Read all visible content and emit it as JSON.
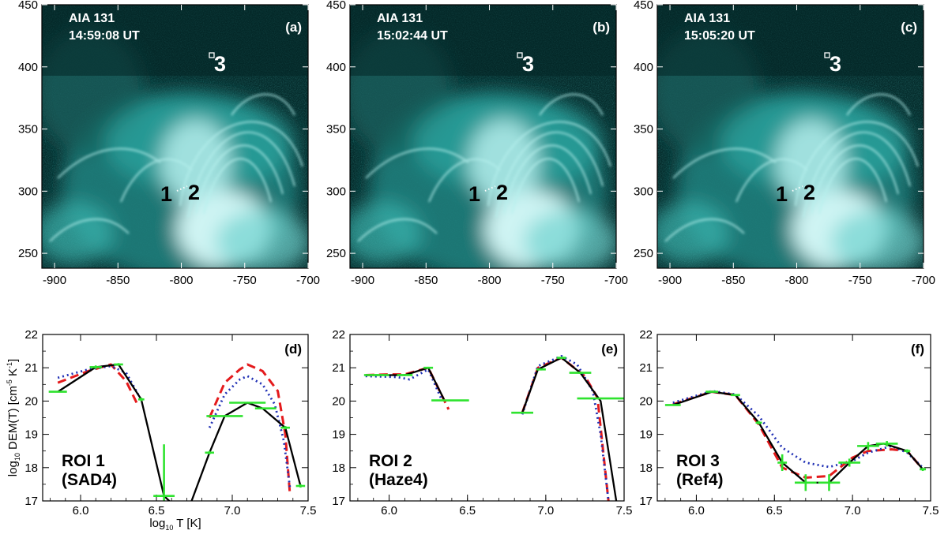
{
  "colors": {
    "image_base": "#052c2c",
    "image_glow": "#dffcfb",
    "image_mid": "#2ea7a3",
    "solid": "#000000",
    "dashed": "#e41a1c",
    "dotted": "#1f2fb4",
    "errbars": "#2ee32e"
  },
  "image_panels": {
    "x_ticks": [
      "-900",
      "-850",
      "-800",
      "-750",
      "-700"
    ],
    "y_ticks": [
      "450",
      "400",
      "350",
      "300",
      "250"
    ],
    "x_range": [
      -910,
      -700
    ],
    "y_range": [
      238,
      450
    ],
    "items": [
      {
        "letter": "(a)",
        "instrument": "AIA 131",
        "time": "14:59:08 UT"
      },
      {
        "letter": "(b)",
        "instrument": "AIA 131",
        "time": "15:02:44 UT"
      },
      {
        "letter": "(c)",
        "instrument": "AIA 131",
        "time": "15:05:20 UT"
      }
    ],
    "markers": {
      "roi1": "1",
      "roi2": "2",
      "roi3": "3"
    }
  },
  "chart_data": [
    {
      "type": "line",
      "panel": "(d)",
      "label_line1": "ROI 1",
      "label_line2": "(SAD4)",
      "ylabel_parts": [
        "log",
        "10",
        " DEM(T) [cm",
        "-5",
        " K",
        "-1",
        "]"
      ],
      "xlabel_parts": [
        "log",
        "10",
        " T [K]"
      ],
      "xlim": [
        5.75,
        7.5
      ],
      "ylim": [
        17,
        22
      ],
      "x_ticks": [
        6.0,
        6.5,
        7.0,
        7.5
      ],
      "y_ticks": [
        17,
        18,
        19,
        20,
        21,
        22
      ],
      "series": [
        {
          "style": "solid",
          "segments": [
            [
              [
                5.85,
                20.28
              ],
              [
                6.1,
                21.02
              ],
              [
                6.25,
                21.1
              ],
              [
                6.4,
                20.05
              ],
              [
                6.55,
                17.15
              ],
              [
                6.62,
                16.85
              ]
            ],
            [
              [
                6.72,
                16.85
              ],
              [
                6.85,
                18.45
              ],
              [
                6.95,
                19.55
              ],
              [
                7.1,
                19.95
              ],
              [
                7.2,
                19.78
              ],
              [
                7.35,
                19.2
              ],
              [
                7.45,
                17.45
              ]
            ]
          ]
        },
        {
          "style": "dashed",
          "segments": [
            [
              [
                5.85,
                20.55
              ],
              [
                6.05,
                20.9
              ],
              [
                6.2,
                21.1
              ],
              [
                6.3,
                20.6
              ],
              [
                6.38,
                19.85
              ]
            ],
            [
              [
                6.85,
                19.5
              ],
              [
                6.95,
                20.55
              ],
              [
                7.05,
                20.95
              ],
              [
                7.1,
                21.1
              ],
              [
                7.2,
                20.9
              ],
              [
                7.3,
                20.3
              ],
              [
                7.35,
                19.0
              ],
              [
                7.38,
                17.2
              ]
            ]
          ]
        },
        {
          "style": "dotted",
          "segments": [
            [
              [
                5.85,
                20.7
              ],
              [
                6.05,
                20.95
              ],
              [
                6.2,
                21.05
              ],
              [
                6.3,
                20.85
              ],
              [
                6.38,
                20.2
              ]
            ],
            [
              [
                6.85,
                19.2
              ],
              [
                6.95,
                20.2
              ],
              [
                7.05,
                20.65
              ],
              [
                7.1,
                20.75
              ],
              [
                7.2,
                20.5
              ],
              [
                7.28,
                19.9
              ],
              [
                7.34,
                18.8
              ],
              [
                7.38,
                17.4
              ]
            ]
          ]
        }
      ],
      "errorbars": [
        {
          "x": 5.85,
          "y": 20.28,
          "xerr": 0.06,
          "yerr": 0.02
        },
        {
          "x": 6.1,
          "y": 21.02,
          "xerr": 0.04,
          "yerr": 0.05
        },
        {
          "x": 6.25,
          "y": 21.1,
          "xerr": 0.03,
          "yerr": 0.04
        },
        {
          "x": 6.4,
          "y": 20.05,
          "xerr": 0.02,
          "yerr": 0.05
        },
        {
          "x": 6.55,
          "y": 17.15,
          "xerr": 0.07,
          "yerr": 1.55
        },
        {
          "x": 6.85,
          "y": 18.45,
          "xerr": 0.03,
          "yerr": 0.05
        },
        {
          "x": 6.95,
          "y": 19.55,
          "xerr": 0.12,
          "yerr": 0.02
        },
        {
          "x": 7.1,
          "y": 19.95,
          "xerr": 0.12,
          "yerr": 0.02
        },
        {
          "x": 7.22,
          "y": 19.78,
          "xerr": 0.07,
          "yerr": 0.02
        },
        {
          "x": 7.35,
          "y": 19.2,
          "xerr": 0.03,
          "yerr": 0.05
        },
        {
          "x": 7.45,
          "y": 17.45,
          "xerr": 0.03,
          "yerr": 0.05
        }
      ]
    },
    {
      "type": "line",
      "panel": "(e)",
      "label_line1": "ROI 2",
      "label_line2": "(Haze4)",
      "xlim": [
        5.75,
        7.5
      ],
      "ylim": [
        17,
        22
      ],
      "x_ticks": [
        6.0,
        6.5,
        7.0,
        7.5
      ],
      "y_ticks": [
        17,
        18,
        19,
        20,
        21,
        22
      ],
      "series": [
        {
          "style": "solid",
          "segments": [
            [
              [
                5.85,
                20.78
              ],
              [
                6.0,
                20.78
              ],
              [
                6.1,
                20.78
              ],
              [
                6.25,
                21.0
              ],
              [
                6.35,
                20.05
              ]
            ],
            [
              [
                6.85,
                19.65
              ],
              [
                6.95,
                20.95
              ],
              [
                7.1,
                21.3
              ],
              [
                7.22,
                20.85
              ],
              [
                7.35,
                20.0
              ],
              [
                7.45,
                17.0
              ]
            ]
          ]
        },
        {
          "style": "dashed",
          "segments": [
            [
              [
                5.85,
                20.78
              ],
              [
                6.0,
                20.8
              ],
              [
                6.1,
                20.8
              ],
              [
                6.25,
                21.0
              ],
              [
                6.38,
                19.75
              ]
            ],
            [
              [
                6.85,
                19.65
              ],
              [
                6.95,
                21.0
              ],
              [
                7.1,
                21.3
              ],
              [
                7.25,
                20.75
              ],
              [
                7.33,
                20.1
              ],
              [
                7.4,
                17.0
              ]
            ]
          ]
        },
        {
          "style": "dotted",
          "segments": [
            [
              [
                5.85,
                20.75
              ],
              [
                6.05,
                20.72
              ],
              [
                6.13,
                20.65
              ],
              [
                6.25,
                20.95
              ],
              [
                6.33,
                20.1
              ]
            ],
            [
              [
                6.85,
                19.6
              ],
              [
                6.95,
                21.05
              ],
              [
                7.1,
                21.35
              ],
              [
                7.2,
                21.1
              ],
              [
                7.3,
                20.3
              ],
              [
                7.35,
                19.0
              ],
              [
                7.4,
                17.0
              ]
            ]
          ]
        }
      ],
      "errorbars": [
        {
          "x": 5.92,
          "y": 20.78,
          "xerr": 0.08,
          "yerr": 0.03
        },
        {
          "x": 6.1,
          "y": 20.78,
          "xerr": 0.05,
          "yerr": 0.03
        },
        {
          "x": 6.25,
          "y": 21.0,
          "xerr": 0.03,
          "yerr": 0.03
        },
        {
          "x": 6.39,
          "y": 20.02,
          "xerr": 0.12,
          "yerr": 0.02
        },
        {
          "x": 6.85,
          "y": 19.65,
          "xerr": 0.07,
          "yerr": 0.02
        },
        {
          "x": 6.97,
          "y": 20.95,
          "xerr": 0.03,
          "yerr": 0.03
        },
        {
          "x": 7.1,
          "y": 21.3,
          "xerr": 0.03,
          "yerr": 0.03
        },
        {
          "x": 7.22,
          "y": 20.85,
          "xerr": 0.07,
          "yerr": 0.03
        },
        {
          "x": 7.35,
          "y": 20.08,
          "xerr": 0.15,
          "yerr": 0.02
        }
      ]
    },
    {
      "type": "line",
      "panel": "(f)",
      "label_line1": "ROI 3",
      "label_line2": "(Ref4)",
      "xlim": [
        5.75,
        7.5
      ],
      "ylim": [
        17,
        22
      ],
      "x_ticks": [
        6.0,
        6.5,
        7.0,
        7.5
      ],
      "y_ticks": [
        17,
        18,
        19,
        20,
        21,
        22
      ],
      "series": [
        {
          "style": "solid",
          "segments": [
            [
              [
                5.85,
                19.88
              ],
              [
                6.1,
                20.28
              ],
              [
                6.25,
                20.18
              ],
              [
                6.4,
                19.35
              ],
              [
                6.55,
                18.15
              ],
              [
                6.7,
                17.55
              ],
              [
                6.85,
                17.55
              ],
              [
                6.98,
                18.15
              ],
              [
                7.1,
                18.65
              ],
              [
                7.2,
                18.72
              ],
              [
                7.35,
                18.5
              ],
              [
                7.45,
                17.95
              ]
            ]
          ]
        },
        {
          "style": "dashed",
          "segments": [
            [
              [
                5.85,
                19.9
              ],
              [
                6.1,
                20.28
              ],
              [
                6.25,
                20.18
              ],
              [
                6.4,
                19.3
              ],
              [
                6.55,
                18.0
              ],
              [
                6.7,
                17.7
              ],
              [
                6.85,
                17.75
              ],
              [
                7.0,
                18.3
              ],
              [
                7.1,
                18.5
              ],
              [
                7.25,
                18.55
              ],
              [
                7.35,
                18.5
              ],
              [
                7.45,
                17.95
              ]
            ]
          ]
        },
        {
          "style": "dotted",
          "segments": [
            [
              [
                5.85,
                19.95
              ],
              [
                6.1,
                20.3
              ],
              [
                6.25,
                20.2
              ],
              [
                6.4,
                19.55
              ],
              [
                6.55,
                18.6
              ],
              [
                6.7,
                18.15
              ],
              [
                6.85,
                18.02
              ],
              [
                7.0,
                18.2
              ],
              [
                7.1,
                18.45
              ],
              [
                7.25,
                18.65
              ],
              [
                7.35,
                18.45
              ],
              [
                7.45,
                18.0
              ]
            ]
          ]
        }
      ],
      "errorbars": [
        {
          "x": 5.85,
          "y": 19.88,
          "xerr": 0.05,
          "yerr": 0.02
        },
        {
          "x": 6.1,
          "y": 20.28,
          "xerr": 0.04,
          "yerr": 0.02
        },
        {
          "x": 6.25,
          "y": 20.18,
          "xerr": 0.03,
          "yerr": 0.02
        },
        {
          "x": 6.4,
          "y": 19.35,
          "xerr": 0.02,
          "yerr": 0.05
        },
        {
          "x": 6.55,
          "y": 18.15,
          "xerr": 0.03,
          "yerr": 0.25
        },
        {
          "x": 6.7,
          "y": 17.55,
          "xerr": 0.07,
          "yerr": 0.25
        },
        {
          "x": 6.85,
          "y": 17.55,
          "xerr": 0.07,
          "yerr": 0.25
        },
        {
          "x": 6.98,
          "y": 18.15,
          "xerr": 0.07,
          "yerr": 0.12
        },
        {
          "x": 7.1,
          "y": 18.65,
          "xerr": 0.07,
          "yerr": 0.12
        },
        {
          "x": 7.22,
          "y": 18.72,
          "xerr": 0.07,
          "yerr": 0.08
        },
        {
          "x": 7.35,
          "y": 18.5,
          "xerr": 0.02,
          "yerr": 0.05
        },
        {
          "x": 7.45,
          "y": 17.95,
          "xerr": 0.02,
          "yerr": 0.05
        }
      ]
    }
  ]
}
